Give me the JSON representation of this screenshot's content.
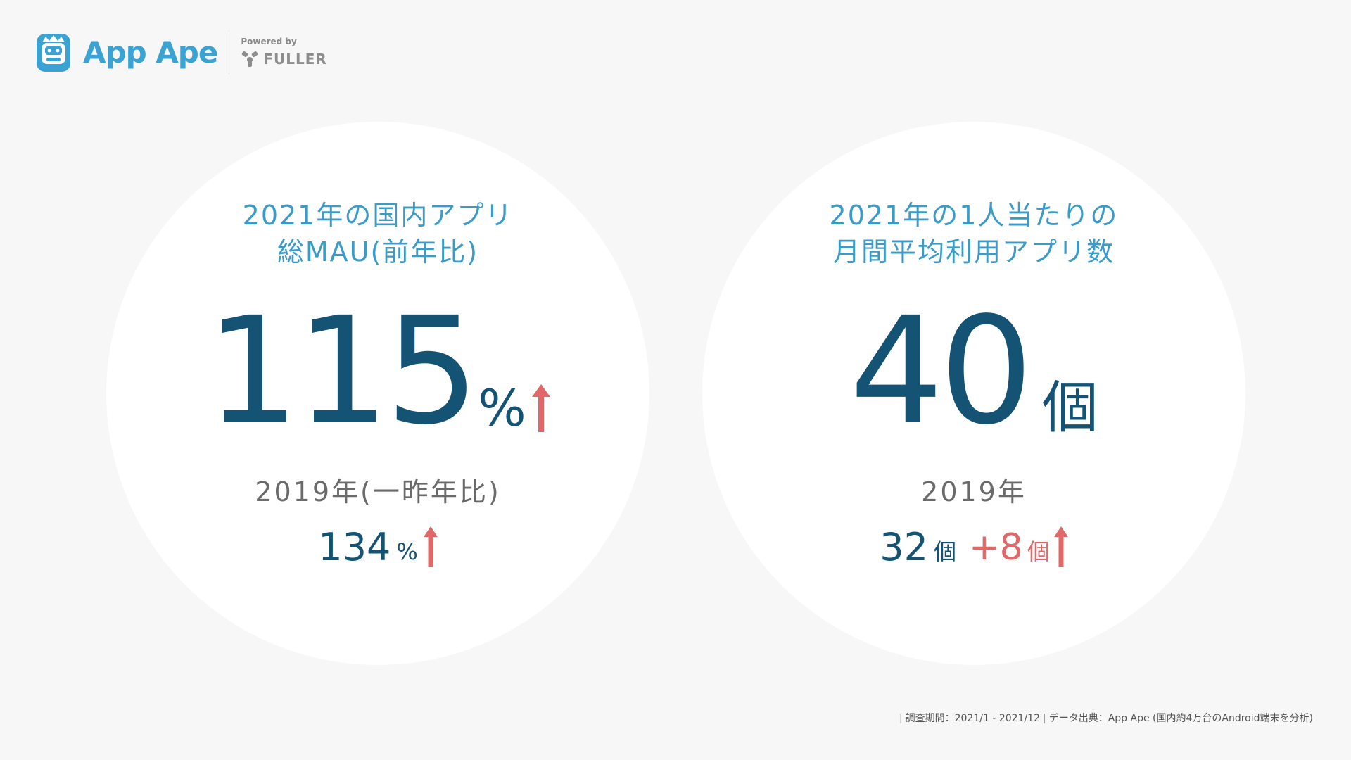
{
  "brand": {
    "name": "App Ape",
    "powered_by": "Powered by",
    "partner": "FULLER",
    "color": "#3ba3d4"
  },
  "cards": [
    {
      "title_lines": [
        "2021年の国内アプリ",
        "総MAU(前年比)"
      ],
      "value": "115",
      "unit": "%",
      "trend_icon": "arrow-up-icon",
      "compare_label": "2019年(一昨年比)",
      "compare_value": "134",
      "compare_unit": "%"
    },
    {
      "title_lines": [
        "2021年の1人当たりの",
        "月間平均利用アプリ数"
      ],
      "value": "40",
      "unit": "個",
      "compare_label": "2019年",
      "compare_value": "32",
      "compare_unit": "個",
      "delta_value": "+8",
      "delta_unit": "個",
      "trend_icon": "arrow-up-icon"
    }
  ],
  "footer": {
    "period": "調査期間：2021/1 - 2021/12",
    "source": "データ出典：App Ape (国内約4万台のAndroid端末を分析)"
  },
  "colors": {
    "title": "#3a9bc9",
    "value": "#155375",
    "accent_up": "#e06868",
    "subtext": "#6a6a6a"
  }
}
